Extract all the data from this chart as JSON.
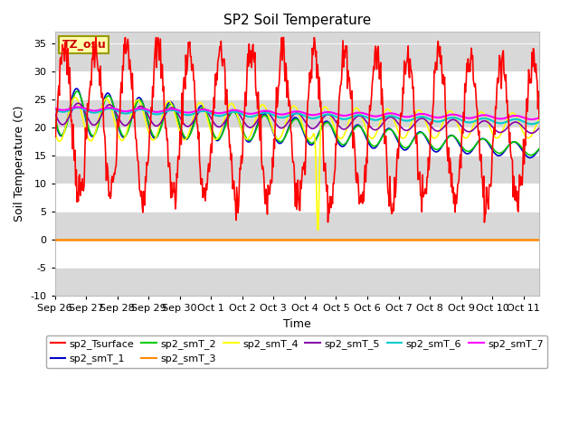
{
  "title": "SP2 Soil Temperature",
  "ylabel": "Soil Temperature (C)",
  "xlabel": "Time",
  "ylim": [
    -10,
    37
  ],
  "yticks": [
    -10,
    -5,
    0,
    5,
    10,
    15,
    20,
    25,
    30,
    35
  ],
  "xtick_labels": [
    "Sep 26",
    "Sep 27",
    "Sep 28",
    "Sep 29",
    "Sep 30",
    "Oct 1",
    "Oct 2",
    "Oct 3",
    "Oct 4",
    "Oct 5",
    "Oct 6",
    "Oct 7",
    "Oct 8",
    "Oct 9",
    "Oct 10",
    "Oct 11"
  ],
  "colors": {
    "sp2_Tsurface": "#ff0000",
    "sp2_smT_1": "#0000cc",
    "sp2_smT_2": "#00cc00",
    "sp2_smT_3": "#ff8800",
    "sp2_smT_4": "#ffff00",
    "sp2_smT_5": "#8800aa",
    "sp2_smT_6": "#00cccc",
    "sp2_smT_7": "#ff00ff"
  },
  "tz_label": "TZ_osu",
  "background_color": "#ffffff"
}
